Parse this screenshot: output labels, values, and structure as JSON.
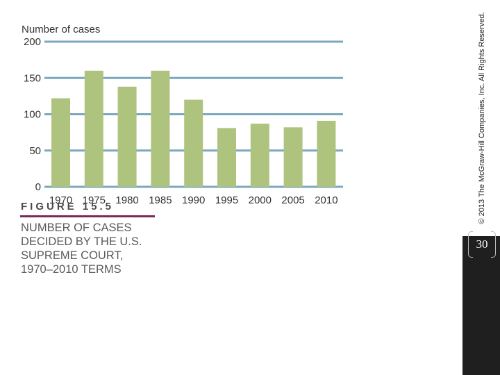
{
  "chart_data": {
    "type": "bar",
    "ylabel": "Number of cases",
    "categories": [
      "1970",
      "1975",
      "1980",
      "1985",
      "1990",
      "1995",
      "2000",
      "2005",
      "2010"
    ],
    "values": [
      122,
      160,
      138,
      160,
      120,
      81,
      87,
      82,
      91
    ],
    "ylim": [
      0,
      200
    ],
    "yticks": [
      0,
      50,
      100,
      150,
      200
    ],
    "grid": true,
    "colors": {
      "bar": "#aec47e",
      "grid": "#7ba7bf"
    }
  },
  "figure": {
    "label": "FIGURE 15.5",
    "caption_lines": [
      "Number of cases",
      "decided by the U.S.",
      "Supreme Court,",
      "1970–2010 terms"
    ]
  },
  "copyright": "© 2013 The McGraw-Hill Companies, Inc. All Rights Reserved.",
  "page_number": "30"
}
